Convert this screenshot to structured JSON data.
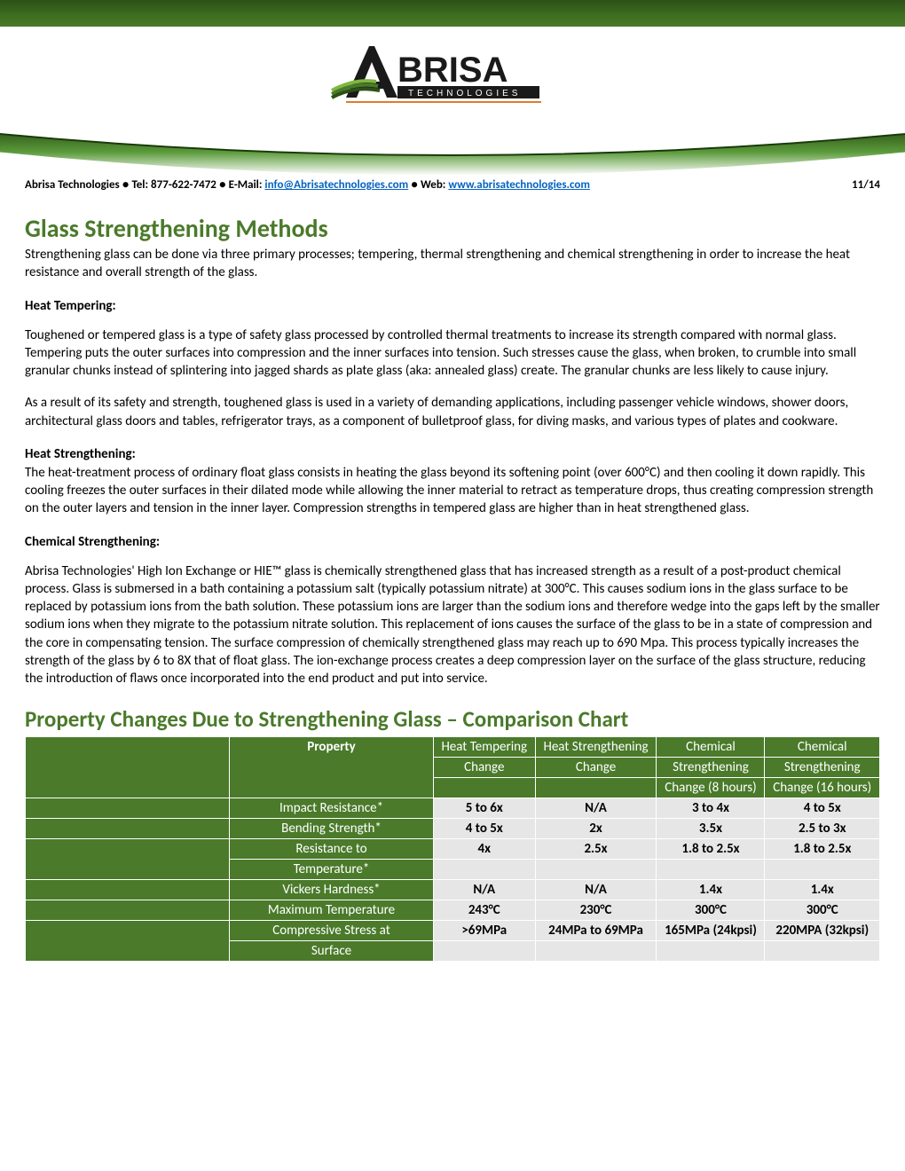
{
  "brand": {
    "name": "ABRISA",
    "tagline": "TECHNOLOGIES",
    "logo_colors": {
      "dark": "#1a1a1a",
      "green_dark": "#2d5016",
      "green_mid": "#4a7a2a",
      "green_light": "#7fb83f",
      "orange": "#e07b2c"
    },
    "strip_gradient": [
      "#2d5016",
      "#3a6b1f",
      "#4a7a2a"
    ]
  },
  "contact": {
    "company": "Abrisa Technologies",
    "tel_label": "Tel:",
    "tel": "877-622-7472",
    "email_label": "E-Mail:",
    "email": "info@Abrisatechnologies.com",
    "web_label": "Web:",
    "web": "www.abrisatechnologies.com",
    "date": "11/14"
  },
  "title": "Glass Strengthening Methods",
  "intro": "Strengthening glass can be done via three primary processes; tempering, thermal strengthening and chemical strengthening in order to increase the heat resistance and overall strength of the glass.",
  "sections": {
    "heat_tempering": {
      "heading": "Heat Tempering:",
      "p1": "Toughened or tempered glass is a type of safety glass processed by controlled thermal treatments to increase its strength compared with normal glass. Tempering puts the outer surfaces into compression and the inner surfaces into tension. Such stresses cause the glass, when broken, to crumble into small granular chunks instead of splintering into jagged shards as plate glass (aka: annealed glass) create. The granular chunks are less likely to cause injury.",
      "p2": "As a result of its safety and strength, toughened glass is used in a variety of demanding applications, including passenger vehicle windows, shower doors, architectural glass doors and tables, refrigerator trays, as a component of bulletproof glass, for diving masks, and various types of plates and cookware."
    },
    "heat_strengthening": {
      "heading": "Heat Strengthening:",
      "p1": "The heat-treatment process of ordinary float glass consists in heating the glass beyond its softening point (over 600°C) and then cooling it down rapidly. This cooling freezes the outer surfaces in their dilated mode while allowing the inner material to retract as temperature drops, thus creating compression strength on the outer layers and tension in the inner layer. Compression strengths in tempered glass are higher than in heat strengthened glass."
    },
    "chemical": {
      "heading": "Chemical Strengthening:",
      "p1": "Abrisa Technologies' High Ion Exchange or HIE™ glass is chemically strengthened glass that has increased strength as a result of a post-product chemical process. Glass is submersed in a bath containing a potassium salt (typically potassium nitrate) at 300°C. This causes sodium ions in the glass surface to be replaced by potassium ions from the bath solution. These potassium ions are larger than the sodium ions and therefore wedge into the gaps left by the smaller sodium ions when they migrate to the potassium nitrate solution. This replacement of ions causes the surface of the glass to be in a state of compression and the core in compensating tension. The surface compression of chemically strengthened glass may reach up to 690 Mpa. This process typically increases the strength of the glass by 6 to 8X that of float glass. The ion-exchange process creates a deep compression layer on the surface of the glass structure, reducing the introduction of flaws once incorporated into the end product and put into service."
    }
  },
  "chart_title": "Property Changes Due to Strengthening Glass – Comparison Chart",
  "table": {
    "header_bg": "#4a7a2a",
    "header_fg": "#ffffff",
    "cell_bg": "#e7e6e6",
    "cell_fg": "#000000",
    "columns": [
      "Property",
      "Heat Tempering Change",
      "Heat Strengthening Change",
      "Chemical Strengthening Change (8 hours)",
      "Chemical Strengthening Change (16 hours)"
    ],
    "col_lines": {
      "c0": "Property",
      "c1a": "Heat Tempering",
      "c1b": "Change",
      "c2a": "Heat Strengthening",
      "c2b": "Change",
      "c3a": "Chemical",
      "c3b": "Strengthening",
      "c3c": "Change (8 hours)",
      "c4a": "Chemical",
      "c4b": "Strengthening",
      "c4c": "Change (16 hours)"
    },
    "rows": [
      {
        "label_a": "Impact Resistance*",
        "label_b": "",
        "cells": [
          "5 to 6x",
          "N/A",
          "3 to 4x",
          "4 to 5x"
        ]
      },
      {
        "label_a": "Bending Strength*",
        "label_b": "",
        "cells": [
          "4 to 5x",
          "2x",
          "3.5x",
          "2.5 to 3x"
        ]
      },
      {
        "label_a": "Resistance to",
        "label_b": "Temperature*",
        "cells": [
          "4x",
          "2.5x",
          "1.8 to 2.5x",
          "1.8 to 2.5x"
        ]
      },
      {
        "label_a": "Vickers Hardness*",
        "label_b": "",
        "cells": [
          "N/A",
          "N/A",
          "1.4x",
          "1.4x"
        ]
      },
      {
        "label_a": "Maximum Temperature",
        "label_b": "",
        "cells": [
          "243°C",
          "230°C",
          "300°C",
          "300°C"
        ]
      },
      {
        "label_a": "Compressive Stress at",
        "label_b": "Surface",
        "cells": [
          ">69MPa",
          "24MPa to 69MPa",
          "165MPa (24kpsi)",
          "220MPA (32kpsi)"
        ]
      }
    ]
  }
}
